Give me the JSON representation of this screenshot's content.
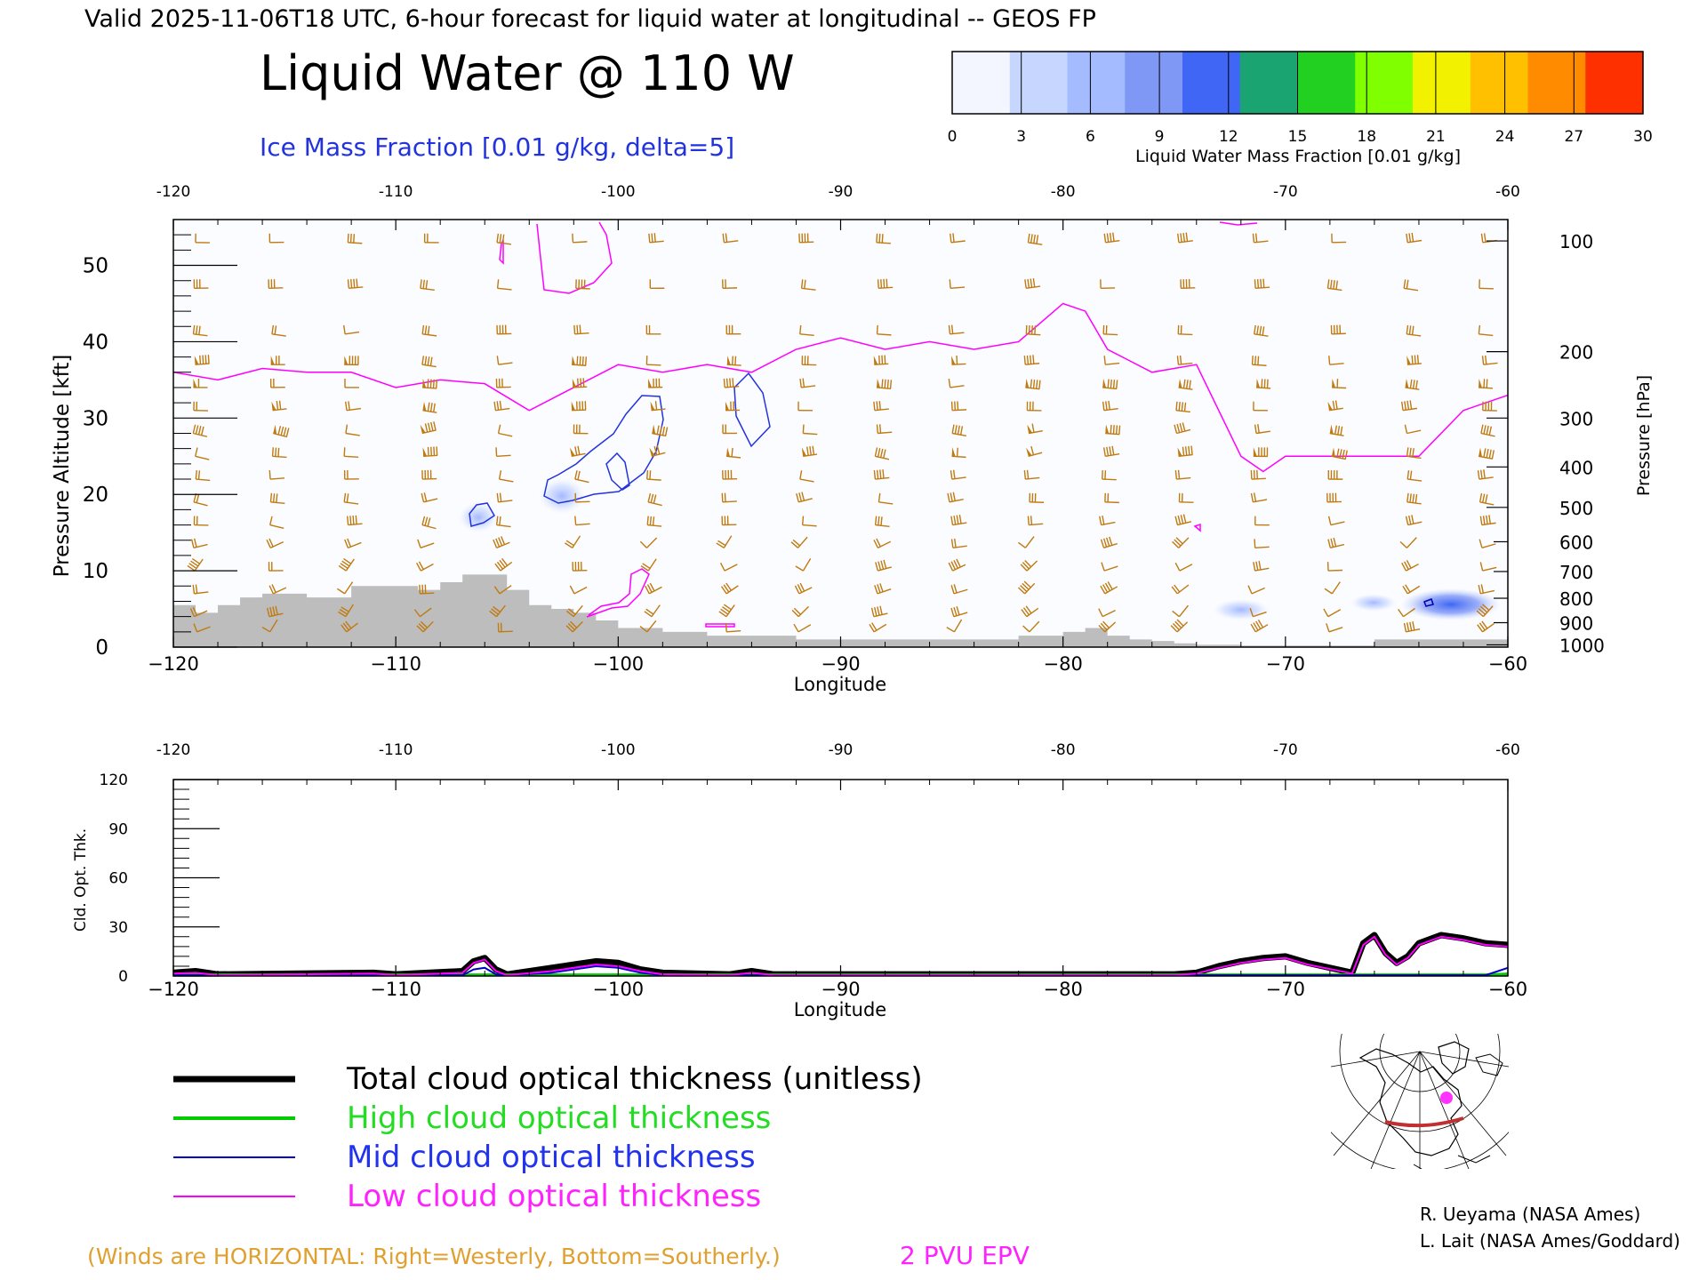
{
  "header": {
    "valid_line": "Valid 2025-11-06T18 UTC, 6-hour forecast for liquid water at longitudinal -- GEOS FP",
    "main_title": "Liquid Water @ 110 W",
    "ice_label": "Ice Mass Fraction [0.01 g/kg, delta=5]"
  },
  "colorbar": {
    "ticks": [
      "0",
      "3",
      "6",
      "9",
      "12",
      "15",
      "18",
      "21",
      "24",
      "27",
      "30"
    ],
    "label": "Liquid Water Mass Fraction [0.01 g/kg]",
    "colors": [
      "#f4f6ff",
      "#c6d6ff",
      "#a4bcff",
      "#7f98f6",
      "#3f66f4",
      "#19a472",
      "#22d022",
      "#7fff00",
      "#f2f200",
      "#ffc000",
      "#ff8c00",
      "#ff3000"
    ]
  },
  "colors": {
    "total": "#000000",
    "high": "#00cc00",
    "mid": "#0000cc",
    "low": "#ff00ff",
    "wind": "#c07a10",
    "terrain": "#bdbdbd",
    "epv": "#ff00ff",
    "ice": "#2233dd"
  },
  "chart_data": [
    {
      "type": "heatmap",
      "name": "cross-section",
      "xlabel": "Longitude",
      "ylabel_left": "Pressure Altitude [kft]",
      "ylabel_right": "Pressure [hPa]",
      "xlim": [
        -120,
        -60
      ],
      "ylim": [
        0,
        56
      ],
      "x_ticks": [
        "−120",
        "−110",
        "−100",
        "−90",
        "−80",
        "−70",
        "−60"
      ],
      "x_ticks_top": [
        "-120",
        "-110",
        "-100",
        "-90",
        "-80",
        "-70",
        "-60"
      ],
      "y_ticks": [
        "0",
        "10",
        "20",
        "30",
        "40",
        "50"
      ],
      "pressure_ticks": [
        "100",
        "200",
        "300",
        "400",
        "500",
        "600",
        "700",
        "800",
        "900",
        "1000"
      ],
      "pressure_tick_kft": [
        53.2,
        38.7,
        30.0,
        23.6,
        18.3,
        13.8,
        9.9,
        6.4,
        3.2,
        0.3
      ],
      "epv_2pvu_kft": {
        "lon": [
          -120,
          -118,
          -116,
          -114,
          -112,
          -110,
          -108,
          -106,
          -104,
          -102,
          -100,
          -98,
          -96,
          -94,
          -92,
          -90,
          -88,
          -86,
          -84,
          -82,
          -80,
          -79,
          -78,
          -76,
          -74,
          -72,
          -71,
          -70,
          -68,
          -66,
          -64,
          -62,
          -60
        ],
        "alt": [
          36,
          35,
          36.5,
          36,
          36,
          34,
          35,
          34.5,
          31,
          34,
          37,
          36,
          37,
          36,
          39,
          40.5,
          39,
          40,
          39,
          40,
          45,
          44,
          39,
          36,
          37,
          25,
          23,
          25,
          25,
          25,
          25,
          31,
          33
        ]
      },
      "terrain_kft": {
        "lon": [
          -120,
          -119,
          -118,
          -117,
          -116,
          -115,
          -114,
          -113,
          -112,
          -111,
          -110,
          -109,
          -108,
          -107,
          -106,
          -105,
          -104,
          -103,
          -102,
          -101,
          -100,
          -99,
          -98,
          -96,
          -94,
          -92,
          -90,
          -88,
          -86,
          -84,
          -82,
          -81,
          -80,
          -79,
          -78,
          -77,
          -76,
          -75,
          -74,
          -72,
          -70,
          -68,
          -66,
          -64,
          -62,
          -60
        ],
        "alt": [
          5.5,
          4.5,
          5.5,
          6.5,
          7,
          7,
          6.5,
          6.5,
          8,
          8,
          8,
          7.5,
          8.5,
          9.5,
          9.5,
          7.5,
          5.5,
          5,
          4.5,
          3.5,
          2.5,
          2.5,
          2,
          1.5,
          1.5,
          1,
          1,
          1,
          1,
          1,
          1.5,
          1.5,
          2,
          2.5,
          1.5,
          1,
          0.8,
          0.5,
          0.3,
          0.2,
          0.2,
          0.2,
          1,
          1,
          1,
          0.5
        ]
      }
    },
    {
      "type": "line",
      "name": "cloud-optical-thickness",
      "xlabel": "Longitude",
      "ylabel": "Cld. Opt. Thk.",
      "xlim": [
        -120,
        -60
      ],
      "ylim": [
        0,
        120
      ],
      "x_ticks": [
        "−120",
        "−110",
        "−100",
        "−90",
        "−80",
        "−70",
        "−60"
      ],
      "x_ticks_top": [
        "-120",
        "-110",
        "-100",
        "-90",
        "-80",
        "-70",
        "-60"
      ],
      "y_ticks": [
        "0",
        "30",
        "60",
        "90",
        "120"
      ],
      "x": [
        -120,
        -119,
        -118,
        -111,
        -110,
        -107,
        -106.5,
        -106,
        -105.5,
        -105,
        -103,
        -102,
        -101,
        -100,
        -99,
        -98,
        -95,
        -94,
        -93,
        -90,
        -80,
        -76,
        -75,
        -74,
        -73,
        -72,
        -71,
        -70,
        -69,
        -67,
        -66.5,
        -66,
        -65.5,
        -65,
        -64.5,
        -64,
        -63,
        -62,
        -61,
        -60
      ],
      "series": [
        {
          "name": "Total cloud optical thickness (unitless)",
          "key": "total",
          "values": [
            2,
            3,
            1,
            2,
            1,
            3,
            9,
            11,
            4,
            1,
            5,
            7,
            9,
            8,
            4,
            2,
            1,
            3,
            1,
            1,
            1,
            1,
            1,
            2,
            6,
            9,
            11,
            12,
            8,
            2,
            20,
            25,
            14,
            8,
            12,
            20,
            25,
            23,
            20,
            19
          ]
        },
        {
          "name": "High cloud optical thickness",
          "key": "high",
          "values": [
            0.5,
            0.5,
            0.5,
            0.5,
            0.5,
            0.5,
            0.5,
            0.5,
            0.5,
            0.5,
            0.5,
            0.5,
            0.5,
            0.5,
            0.5,
            0.5,
            0.5,
            0.5,
            0.5,
            0.5,
            0.5,
            0.5,
            0.5,
            0.5,
            0.5,
            0.5,
            0.5,
            0.5,
            0.5,
            0.5,
            0.5,
            0.5,
            0.5,
            0.5,
            0.5,
            0.5,
            0.5,
            0.5,
            0.5,
            1
          ]
        },
        {
          "name": "Mid cloud optical thickness",
          "key": "mid",
          "values": [
            0.5,
            0.5,
            0.5,
            0.5,
            0.5,
            0.5,
            4,
            5,
            1,
            0.5,
            2,
            4,
            6,
            5,
            2,
            0.5,
            0.5,
            0.5,
            0.5,
            0.5,
            0.5,
            0.5,
            0.5,
            0.5,
            0.5,
            0.5,
            0.5,
            0.5,
            0.5,
            0.5,
            0.5,
            0.5,
            0.5,
            0.5,
            0.5,
            0.5,
            0.5,
            0.5,
            0.5,
            5
          ]
        },
        {
          "name": "Low cloud optical thickness",
          "key": "low",
          "values": [
            1.5,
            2,
            0.5,
            1.5,
            0.5,
            2,
            8,
            10,
            3,
            0.5,
            3,
            5,
            7,
            6,
            3,
            1,
            0.5,
            2,
            0.5,
            0.5,
            0.5,
            0.5,
            0.5,
            1.5,
            5,
            8,
            10,
            11,
            7,
            1.5,
            19,
            24,
            13,
            7,
            11,
            19,
            24,
            22,
            19,
            18
          ]
        }
      ]
    }
  ],
  "legend": {
    "total_label": "Total cloud optical thickness (unitless)",
    "high_label": "High cloud optical thickness",
    "mid_label": "Mid cloud optical thickness",
    "low_label": "Low cloud optical thickness"
  },
  "footer": {
    "winds_note": "(Winds are HORIZONTAL: Right=Westerly, Bottom=Southerly.)",
    "epv_label": "2 PVU EPV",
    "credit1": "R. Ueyama (NASA Ames)",
    "credit2": "L. Lait (NASA Ames/Goddard)"
  },
  "inset_map": {
    "marker_color": "#ff33ff",
    "track_color": "#c03030"
  }
}
